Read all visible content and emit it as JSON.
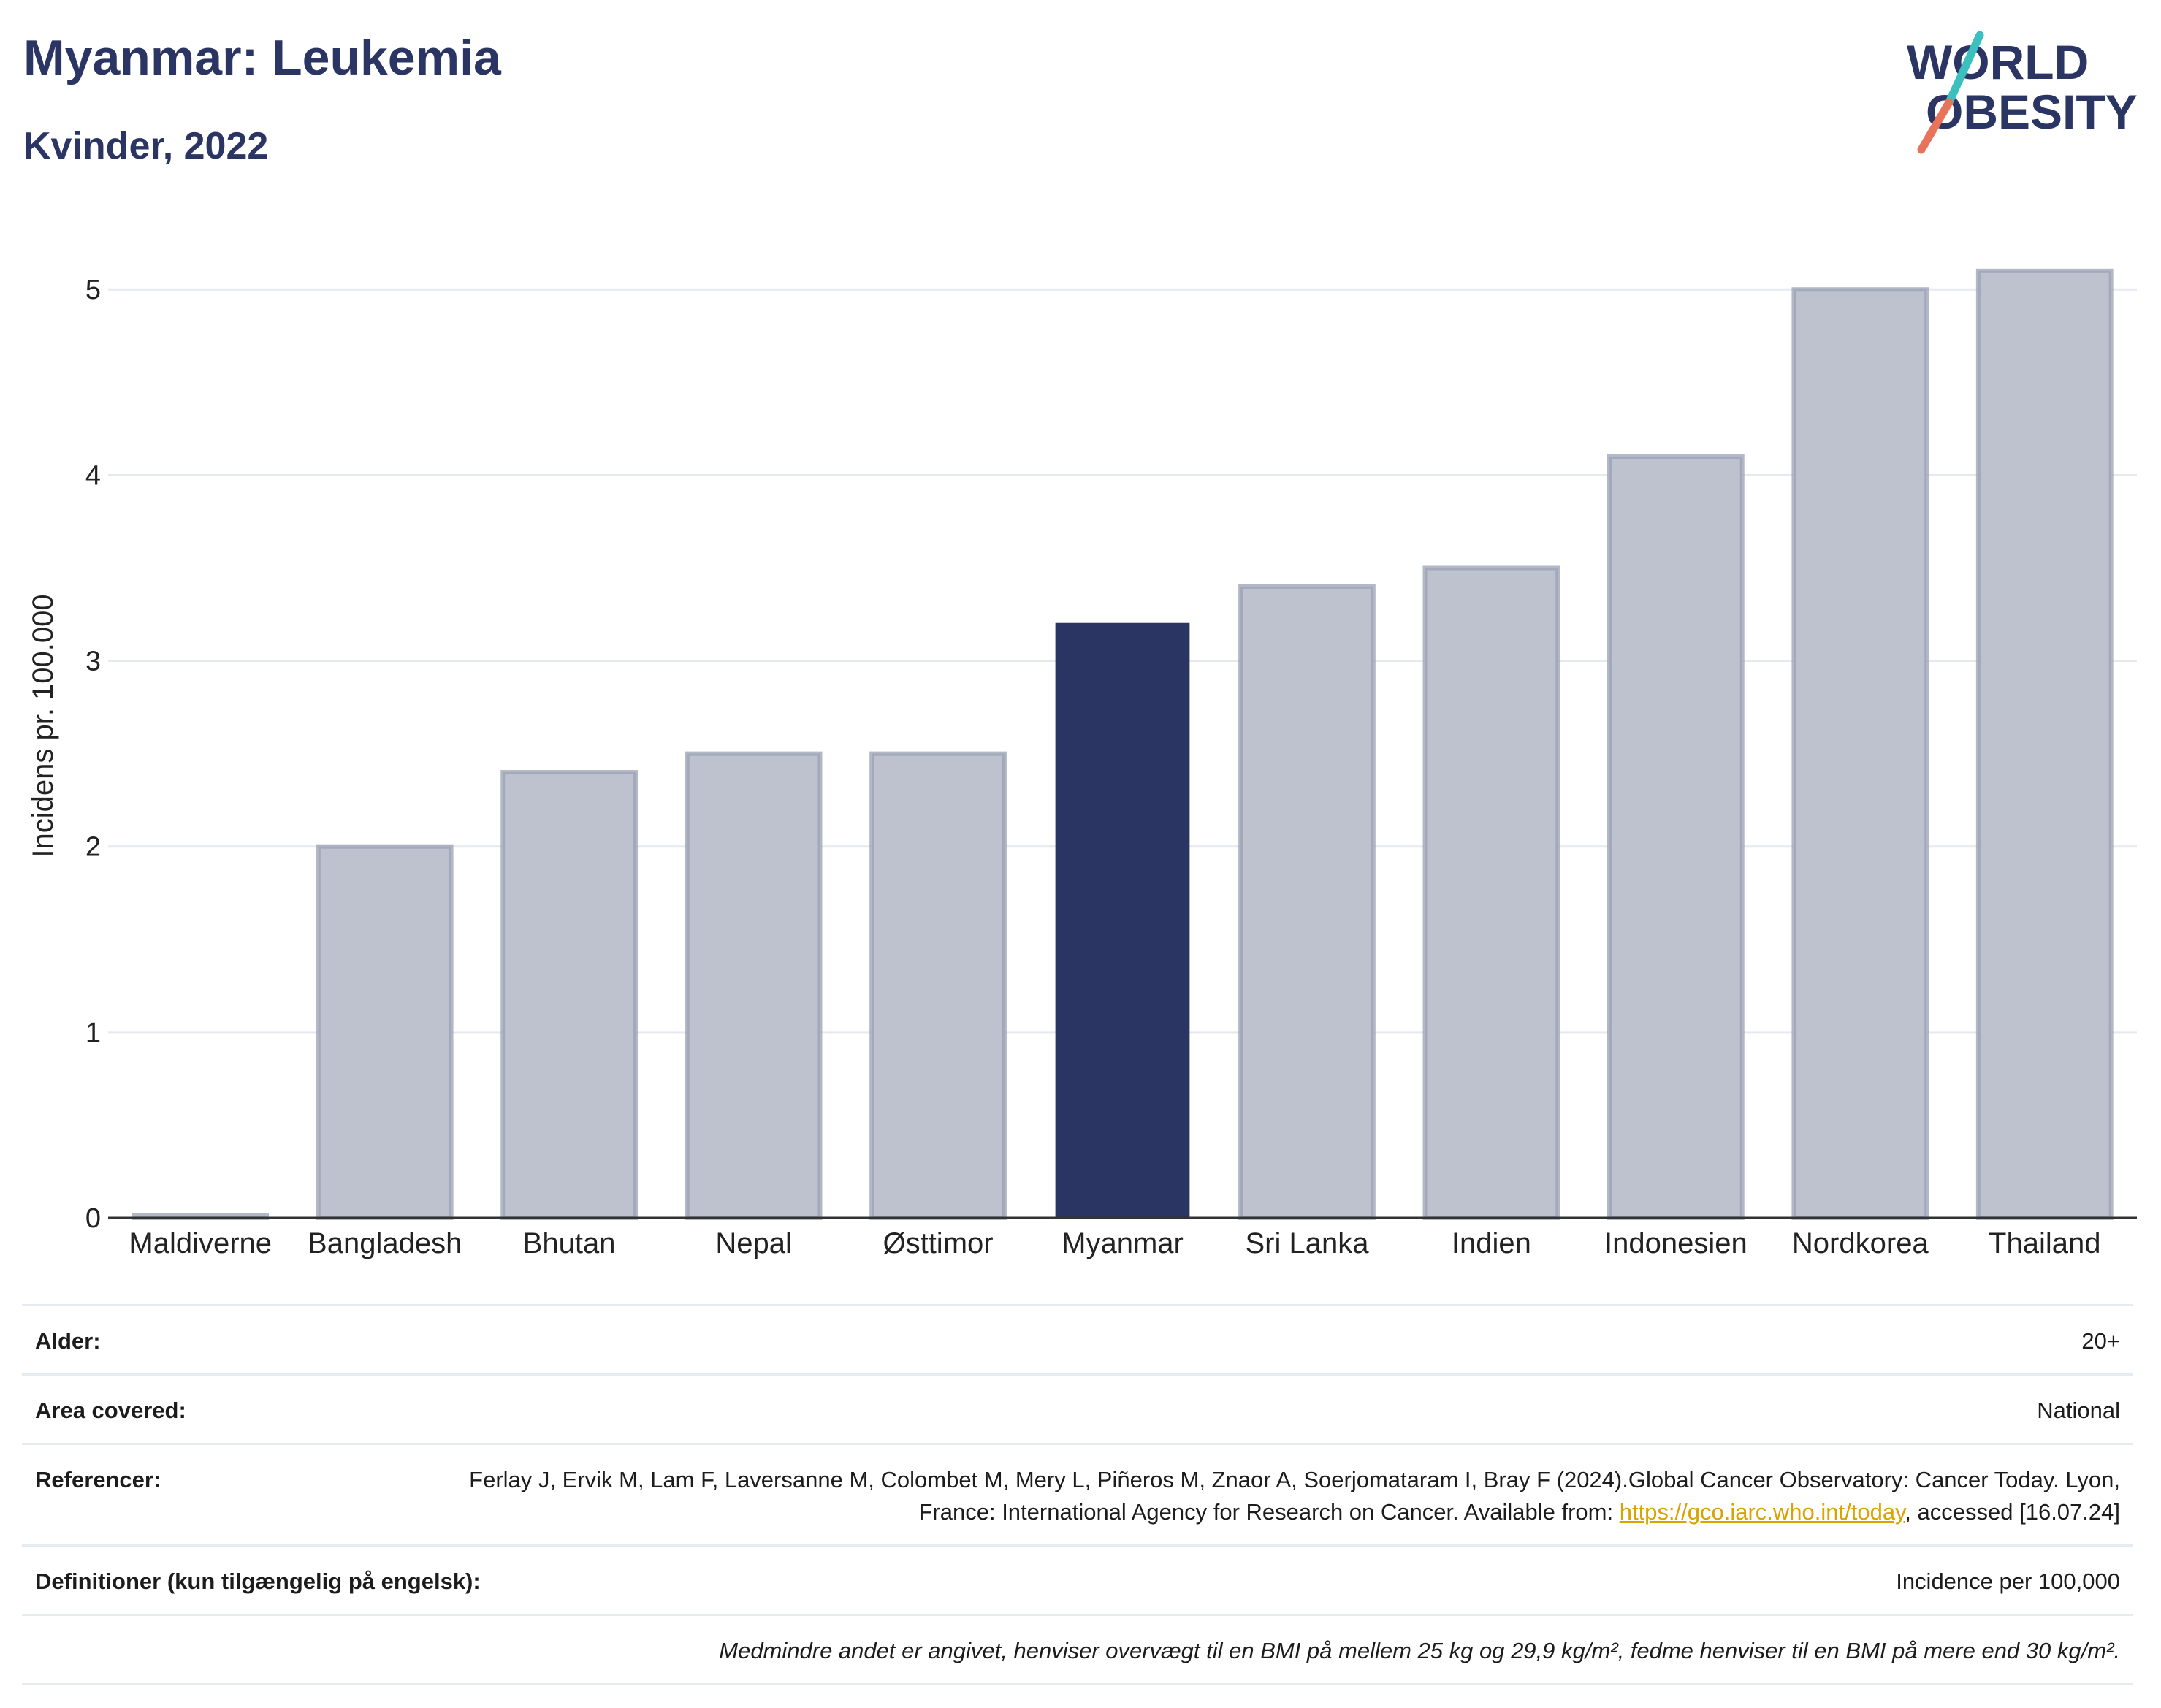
{
  "header": {
    "title": "Myanmar: Leukemia",
    "subtitle": "Kvinder, 2022"
  },
  "logo": {
    "line1": "WORLD",
    "line2": "OBESITY"
  },
  "colors": {
    "highlight": "#2b3563",
    "bar": "#bec2cf",
    "bar_border": "#9aa0b4",
    "grid": "#e6e9ef",
    "accent_teal": "#3bbfbf",
    "accent_coral": "#e8735a"
  },
  "chart_data": {
    "type": "bar",
    "categories": [
      "Maldiverne",
      "Bangladesh",
      "Bhutan",
      "Nepal",
      "Østtimor",
      "Myanmar",
      "Sri Lanka",
      "Indien",
      "Indonesien",
      "Nordkorea",
      "Thailand"
    ],
    "values": [
      0,
      2.0,
      2.4,
      2.5,
      2.5,
      3.2,
      3.4,
      3.5,
      4.1,
      5.0,
      5.1
    ],
    "highlight": "Myanmar",
    "ylabel": "Incidens pr. 100.000",
    "yticks": [
      0,
      1,
      2,
      3,
      4,
      5
    ],
    "ylim": [
      0,
      5.3
    ],
    "grid": true
  },
  "info": {
    "age_label": "Alder:",
    "age_value": "20+",
    "area_label": "Area covered:",
    "area_value": "National",
    "ref_label": "Referencer:",
    "ref_text_1": "Ferlay J, Ervik M, Lam F, Laversanne M, Colombet M, Mery L, Piñeros M, Znaor A, Soerjomataram I, Bray F (2024).Global Cancer Observatory: Cancer Today. Lyon, France: International Agency for Research on Cancer. Available from: ",
    "ref_link": "https://gco.iarc.who.int/today",
    "ref_text_2": ", accessed [16.07.24]",
    "def_label": "Definitioner (kun tilgængelig på engelsk):",
    "def_value": "Incidence per 100,000",
    "note": "Medmindre andet er angivet, henviser overvægt til en BMI på mellem 25 kg og 29,9 kg/m², fedme henviser til en BMI på mere end 30 kg/m²."
  }
}
